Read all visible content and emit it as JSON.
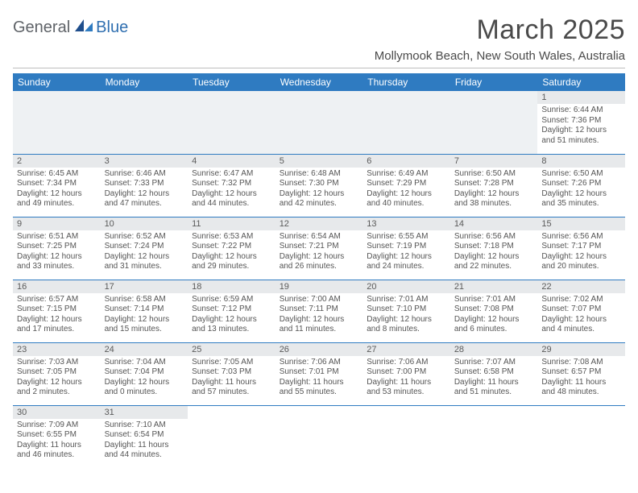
{
  "brand": {
    "general": "General",
    "blue": "Blue"
  },
  "title": "March 2025",
  "location": "Mollymook Beach, New South Wales, Australia",
  "colors": {
    "header_bg": "#2f7bc1",
    "header_text": "#ffffff",
    "daynum_bg": "#e7e9eb",
    "rule": "#bdbdbd",
    "body_text": "#555555",
    "empty_bg": "#eef1f3"
  },
  "dow": [
    "Sunday",
    "Monday",
    "Tuesday",
    "Wednesday",
    "Thursday",
    "Friday",
    "Saturday"
  ],
  "leading_blanks": 6,
  "days": [
    {
      "n": "1",
      "sunrise": "Sunrise: 6:44 AM",
      "sunset": "Sunset: 7:36 PM",
      "daylight": "Daylight: 12 hours and 51 minutes."
    },
    {
      "n": "2",
      "sunrise": "Sunrise: 6:45 AM",
      "sunset": "Sunset: 7:34 PM",
      "daylight": "Daylight: 12 hours and 49 minutes."
    },
    {
      "n": "3",
      "sunrise": "Sunrise: 6:46 AM",
      "sunset": "Sunset: 7:33 PM",
      "daylight": "Daylight: 12 hours and 47 minutes."
    },
    {
      "n": "4",
      "sunrise": "Sunrise: 6:47 AM",
      "sunset": "Sunset: 7:32 PM",
      "daylight": "Daylight: 12 hours and 44 minutes."
    },
    {
      "n": "5",
      "sunrise": "Sunrise: 6:48 AM",
      "sunset": "Sunset: 7:30 PM",
      "daylight": "Daylight: 12 hours and 42 minutes."
    },
    {
      "n": "6",
      "sunrise": "Sunrise: 6:49 AM",
      "sunset": "Sunset: 7:29 PM",
      "daylight": "Daylight: 12 hours and 40 minutes."
    },
    {
      "n": "7",
      "sunrise": "Sunrise: 6:50 AM",
      "sunset": "Sunset: 7:28 PM",
      "daylight": "Daylight: 12 hours and 38 minutes."
    },
    {
      "n": "8",
      "sunrise": "Sunrise: 6:50 AM",
      "sunset": "Sunset: 7:26 PM",
      "daylight": "Daylight: 12 hours and 35 minutes."
    },
    {
      "n": "9",
      "sunrise": "Sunrise: 6:51 AM",
      "sunset": "Sunset: 7:25 PM",
      "daylight": "Daylight: 12 hours and 33 minutes."
    },
    {
      "n": "10",
      "sunrise": "Sunrise: 6:52 AM",
      "sunset": "Sunset: 7:24 PM",
      "daylight": "Daylight: 12 hours and 31 minutes."
    },
    {
      "n": "11",
      "sunrise": "Sunrise: 6:53 AM",
      "sunset": "Sunset: 7:22 PM",
      "daylight": "Daylight: 12 hours and 29 minutes."
    },
    {
      "n": "12",
      "sunrise": "Sunrise: 6:54 AM",
      "sunset": "Sunset: 7:21 PM",
      "daylight": "Daylight: 12 hours and 26 minutes."
    },
    {
      "n": "13",
      "sunrise": "Sunrise: 6:55 AM",
      "sunset": "Sunset: 7:19 PM",
      "daylight": "Daylight: 12 hours and 24 minutes."
    },
    {
      "n": "14",
      "sunrise": "Sunrise: 6:56 AM",
      "sunset": "Sunset: 7:18 PM",
      "daylight": "Daylight: 12 hours and 22 minutes."
    },
    {
      "n": "15",
      "sunrise": "Sunrise: 6:56 AM",
      "sunset": "Sunset: 7:17 PM",
      "daylight": "Daylight: 12 hours and 20 minutes."
    },
    {
      "n": "16",
      "sunrise": "Sunrise: 6:57 AM",
      "sunset": "Sunset: 7:15 PM",
      "daylight": "Daylight: 12 hours and 17 minutes."
    },
    {
      "n": "17",
      "sunrise": "Sunrise: 6:58 AM",
      "sunset": "Sunset: 7:14 PM",
      "daylight": "Daylight: 12 hours and 15 minutes."
    },
    {
      "n": "18",
      "sunrise": "Sunrise: 6:59 AM",
      "sunset": "Sunset: 7:12 PM",
      "daylight": "Daylight: 12 hours and 13 minutes."
    },
    {
      "n": "19",
      "sunrise": "Sunrise: 7:00 AM",
      "sunset": "Sunset: 7:11 PM",
      "daylight": "Daylight: 12 hours and 11 minutes."
    },
    {
      "n": "20",
      "sunrise": "Sunrise: 7:01 AM",
      "sunset": "Sunset: 7:10 PM",
      "daylight": "Daylight: 12 hours and 8 minutes."
    },
    {
      "n": "21",
      "sunrise": "Sunrise: 7:01 AM",
      "sunset": "Sunset: 7:08 PM",
      "daylight": "Daylight: 12 hours and 6 minutes."
    },
    {
      "n": "22",
      "sunrise": "Sunrise: 7:02 AM",
      "sunset": "Sunset: 7:07 PM",
      "daylight": "Daylight: 12 hours and 4 minutes."
    },
    {
      "n": "23",
      "sunrise": "Sunrise: 7:03 AM",
      "sunset": "Sunset: 7:05 PM",
      "daylight": "Daylight: 12 hours and 2 minutes."
    },
    {
      "n": "24",
      "sunrise": "Sunrise: 7:04 AM",
      "sunset": "Sunset: 7:04 PM",
      "daylight": "Daylight: 12 hours and 0 minutes."
    },
    {
      "n": "25",
      "sunrise": "Sunrise: 7:05 AM",
      "sunset": "Sunset: 7:03 PM",
      "daylight": "Daylight: 11 hours and 57 minutes."
    },
    {
      "n": "26",
      "sunrise": "Sunrise: 7:06 AM",
      "sunset": "Sunset: 7:01 PM",
      "daylight": "Daylight: 11 hours and 55 minutes."
    },
    {
      "n": "27",
      "sunrise": "Sunrise: 7:06 AM",
      "sunset": "Sunset: 7:00 PM",
      "daylight": "Daylight: 11 hours and 53 minutes."
    },
    {
      "n": "28",
      "sunrise": "Sunrise: 7:07 AM",
      "sunset": "Sunset: 6:58 PM",
      "daylight": "Daylight: 11 hours and 51 minutes."
    },
    {
      "n": "29",
      "sunrise": "Sunrise: 7:08 AM",
      "sunset": "Sunset: 6:57 PM",
      "daylight": "Daylight: 11 hours and 48 minutes."
    },
    {
      "n": "30",
      "sunrise": "Sunrise: 7:09 AM",
      "sunset": "Sunset: 6:55 PM",
      "daylight": "Daylight: 11 hours and 46 minutes."
    },
    {
      "n": "31",
      "sunrise": "Sunrise: 7:10 AM",
      "sunset": "Sunset: 6:54 PM",
      "daylight": "Daylight: 11 hours and 44 minutes."
    }
  ]
}
